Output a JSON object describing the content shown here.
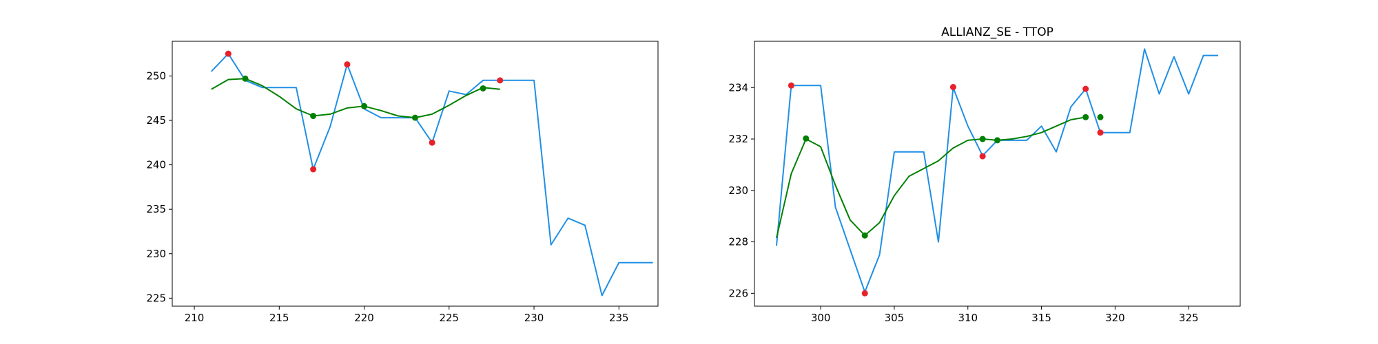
{
  "chart_data": [
    {
      "type": "line",
      "title": "",
      "xlabel": "",
      "ylabel": "",
      "xlim": [
        208.7,
        237.3
      ],
      "ylim": [
        224.1,
        253.9
      ],
      "xticks": [
        210,
        215,
        220,
        225,
        230,
        235
      ],
      "yticks": [
        225,
        230,
        235,
        240,
        245,
        250
      ],
      "grid": false,
      "legend": "none",
      "colors": {
        "price": "#1f8fe6",
        "smooth": "#008000",
        "red_points": "#e8202a",
        "green_points": "#008000"
      },
      "series": [
        {
          "role": "price",
          "x": [
            211,
            212,
            213,
            214,
            215,
            216,
            217,
            218,
            219,
            220,
            221,
            222,
            223,
            224,
            225,
            226,
            227,
            228,
            229,
            230,
            231,
            232,
            233,
            234,
            235,
            236,
            237
          ],
          "y": [
            250.5,
            252.5,
            249.5,
            248.7,
            248.7,
            248.7,
            239.5,
            244.3,
            251.3,
            246.3,
            245.3,
            245.3,
            245.3,
            242.5,
            248.3,
            247.9,
            249.5,
            249.5,
            249.5,
            249.5,
            231.0,
            234.0,
            233.2,
            225.3,
            229.0,
            229.0,
            229.0
          ]
        },
        {
          "role": "smooth",
          "x": [
            211,
            212,
            213,
            214,
            215,
            216,
            217,
            218,
            219,
            220,
            221,
            222,
            223,
            224,
            225,
            226,
            227,
            228
          ],
          "y": [
            248.5,
            249.6,
            249.7,
            248.9,
            247.7,
            246.3,
            245.5,
            245.7,
            246.4,
            246.6,
            246.1,
            245.5,
            245.3,
            245.7,
            246.7,
            247.8,
            248.7,
            248.5
          ]
        }
      ],
      "red_points": {
        "x": [
          212,
          217,
          219,
          224,
          228
        ],
        "y": [
          252.5,
          239.5,
          251.3,
          242.5,
          249.5
        ]
      },
      "green_points": {
        "x": [
          213,
          217,
          220,
          223,
          227
        ],
        "y": [
          249.7,
          245.5,
          246.6,
          245.3,
          248.6
        ]
      }
    },
    {
      "type": "line",
      "title": "ALLIANZ_SE - TTOP",
      "xlabel": "",
      "ylabel": "",
      "xlim": [
        295.5,
        328.5
      ],
      "ylim": [
        225.5,
        235.8
      ],
      "xticks": [
        300,
        305,
        310,
        315,
        320,
        325
      ],
      "yticks": [
        226,
        228,
        230,
        232,
        234
      ],
      "grid": false,
      "legend": "none",
      "colors": {
        "price": "#1f8fe6",
        "smooth": "#008000",
        "red_points": "#e8202a",
        "green_points": "#008000"
      },
      "series": [
        {
          "role": "price",
          "x": [
            297,
            298,
            299,
            300,
            301,
            302,
            303,
            304,
            305,
            306,
            307,
            308,
            309,
            310,
            311,
            312,
            313,
            314,
            315,
            316,
            317,
            318,
            319,
            320,
            321,
            322,
            323,
            324,
            325,
            326,
            327
          ],
          "y": [
            227.85,
            234.08,
            234.08,
            234.08,
            229.35,
            227.7,
            226.05,
            227.5,
            231.5,
            231.5,
            231.5,
            228.0,
            234.0,
            232.5,
            231.35,
            231.95,
            231.95,
            231.95,
            232.5,
            231.5,
            233.25,
            233.95,
            232.25,
            232.25,
            232.25,
            235.5,
            233.75,
            235.2,
            233.75,
            235.25,
            235.25
          ]
        },
        {
          "role": "smooth",
          "x": [
            297,
            298,
            299,
            300,
            301,
            302,
            303,
            304,
            305,
            306,
            307,
            308,
            309,
            310,
            311,
            312,
            313,
            314,
            315,
            316,
            317,
            318
          ],
          "y": [
            228.15,
            230.65,
            232.0,
            231.7,
            230.2,
            228.85,
            228.25,
            228.75,
            229.8,
            230.55,
            230.85,
            231.15,
            231.65,
            231.95,
            232.0,
            231.95,
            232.0,
            232.1,
            232.25,
            232.5,
            232.75,
            232.85
          ]
        }
      ],
      "red_points": {
        "x": [
          298,
          303,
          309,
          311,
          318,
          319
        ],
        "y": [
          234.08,
          226.0,
          234.02,
          231.33,
          233.95,
          232.25
        ]
      },
      "green_points": {
        "x": [
          299,
          303,
          311,
          312,
          318,
          319
        ],
        "y": [
          232.02,
          228.25,
          232.0,
          231.95,
          232.85,
          232.85
        ]
      }
    }
  ]
}
